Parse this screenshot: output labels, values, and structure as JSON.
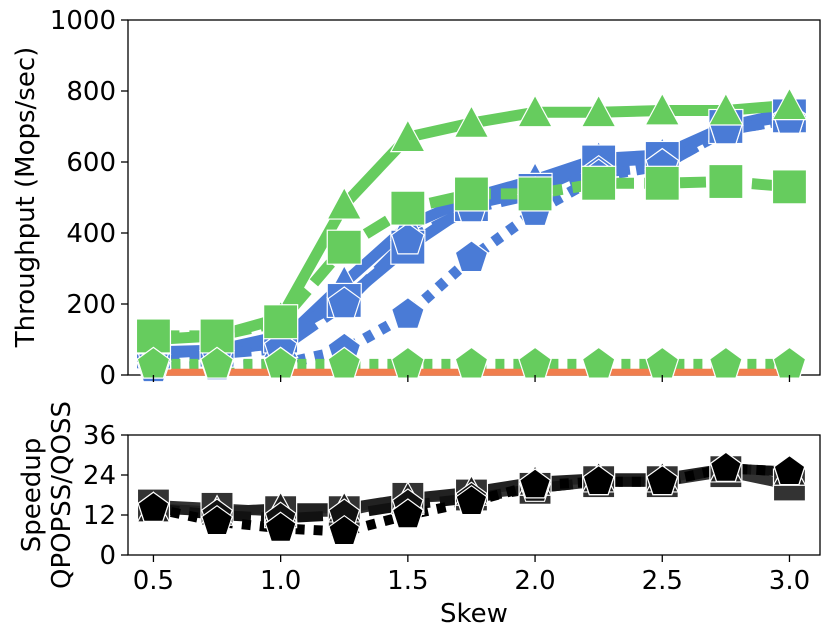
{
  "chart_data": [
    {
      "type": "line",
      "ylabel": "Throughput (Mops/sec)",
      "xlabel": "",
      "xlim": [
        0.4,
        3.12
      ],
      "ylim": [
        0,
        1000
      ],
      "yticks": [
        0,
        200,
        400,
        600,
        800,
        1000
      ],
      "x": [
        0.5,
        0.75,
        1.0,
        1.25,
        1.5,
        1.75,
        2.0,
        2.25,
        2.5,
        2.75,
        3.0
      ],
      "series": [
        {
          "name": "blue-triangle-solid",
          "color": "#4a7bd6",
          "marker": "triangle",
          "dash": "solid",
          "values": [
            60,
            70,
            90,
            260,
            420,
            500,
            550,
            610,
            620,
            700,
            740
          ]
        },
        {
          "name": "blue-square-solid",
          "color": "#4a7bd6",
          "marker": "square",
          "dash": "solid",
          "values": [
            65,
            70,
            110,
            210,
            360,
            480,
            520,
            600,
            610,
            700,
            730
          ]
        },
        {
          "name": "blue-pentagon-dashed",
          "color": "#4a7bd6",
          "marker": "pentagon",
          "dash": "dashed",
          "values": [
            55,
            60,
            75,
            200,
            380,
            470,
            510,
            570,
            590,
            690,
            720
          ]
        },
        {
          "name": "blue-pentagon-dotted",
          "color": "#4a7bd6",
          "marker": "pentagon",
          "dash": "dotted",
          "values": [
            20,
            25,
            30,
            70,
            170,
            330,
            460,
            560,
            590,
            690,
            720
          ]
        },
        {
          "name": "green-triangle-solid",
          "color": "#66cc5e",
          "marker": "triangle",
          "dash": "solid",
          "values": [
            100,
            110,
            160,
            480,
            670,
            710,
            740,
            740,
            745,
            745,
            760
          ]
        },
        {
          "name": "green-square-dashed",
          "color": "#66cc5e",
          "marker": "square",
          "dash": "dashed",
          "values": [
            110,
            110,
            150,
            360,
            470,
            510,
            510,
            540,
            540,
            545,
            530
          ]
        },
        {
          "name": "green-pentagon-dotted",
          "color": "#66cc5e",
          "marker": "pentagon",
          "dash": "dotted",
          "values": [
            30,
            30,
            30,
            30,
            30,
            30,
            30,
            30,
            30,
            30,
            30
          ]
        },
        {
          "name": "orange-baseline",
          "color": "#f07e4e",
          "marker": "none",
          "dash": "solid",
          "values": [
            8,
            8,
            8,
            8,
            8,
            8,
            8,
            8,
            8,
            8,
            8
          ]
        }
      ]
    },
    {
      "type": "line",
      "ylabel": "Speedup QPOPSS/QOSS",
      "ylabel_lines": [
        "Speedup",
        "QPOPSS/QOSS"
      ],
      "xlabel": "Skew",
      "xlim": [
        0.4,
        3.12
      ],
      "ylim": [
        0,
        36
      ],
      "yticks": [
        0,
        12,
        24,
        36
      ],
      "xticks": [
        0.5,
        1.0,
        1.5,
        2.0,
        2.5,
        3.0
      ],
      "xtick_labels": [
        "0.5",
        "1.0",
        "1.5",
        "2.0",
        "2.5",
        "3.0"
      ],
      "x": [
        0.5,
        0.75,
        1.0,
        1.25,
        1.5,
        1.75,
        2.0,
        2.25,
        2.5,
        2.75,
        3.0
      ],
      "series": [
        {
          "name": "black-square-solid",
          "color": "#333333",
          "marker": "square",
          "dash": "solid",
          "values": [
            15,
            14,
            13,
            13,
            17,
            18,
            20,
            22,
            22,
            25,
            21
          ]
        },
        {
          "name": "black-triangle-solid",
          "color": "#222222",
          "marker": "triangle",
          "dash": "solid",
          "values": [
            14,
            13,
            14,
            14,
            17,
            19,
            22,
            23,
            23,
            26,
            25
          ]
        },
        {
          "name": "black-pentagon-dashed",
          "color": "#111111",
          "marker": "pentagon",
          "dash": "dashed",
          "values": [
            14,
            12,
            11,
            12,
            15,
            17,
            20,
            22,
            22,
            26,
            25
          ]
        },
        {
          "name": "black-pentagon-dotted",
          "color": "#000000",
          "marker": "pentagon",
          "dash": "dotted",
          "values": [
            14,
            10,
            8,
            7,
            12,
            16,
            21,
            22,
            22,
            26,
            25
          ]
        }
      ]
    }
  ]
}
